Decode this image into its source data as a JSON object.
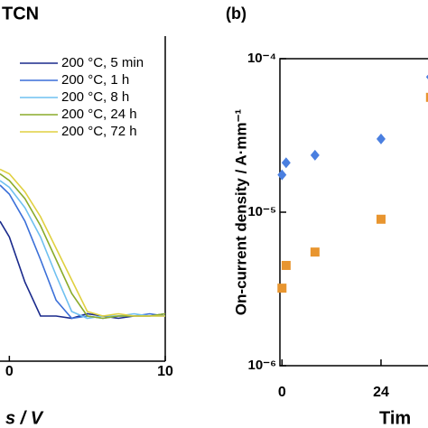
{
  "chart_data": [
    {
      "type": "line",
      "title": "TCN",
      "xlabel": "s / V",
      "x": [
        -0.6,
        0,
        1,
        2,
        3,
        4,
        5,
        6,
        7,
        8,
        9,
        10
      ],
      "xlim": [
        -0.6,
        10
      ],
      "xticks": [
        0,
        10
      ],
      "ylim": [
        0,
        1
      ],
      "series": [
        {
          "name": "200 °C, 5 min",
          "color": "#1a2a8c",
          "values": [
            0.62,
            0.55,
            0.35,
            0.2,
            0.2,
            0.19,
            0.21,
            0.2,
            0.19,
            0.2,
            0.2,
            0.21
          ]
        },
        {
          "name": "200 °C, 1 h",
          "color": "#3a6fd8",
          "values": [
            0.78,
            0.74,
            0.62,
            0.45,
            0.27,
            0.19,
            0.2,
            0.19,
            0.2,
            0.2,
            0.21,
            0.2
          ]
        },
        {
          "name": "200 °C, 8 h",
          "color": "#6fc0f0",
          "values": [
            0.8,
            0.77,
            0.68,
            0.55,
            0.38,
            0.22,
            0.19,
            0.2,
            0.2,
            0.21,
            0.2,
            0.2
          ]
        },
        {
          "name": "200 °C, 24 h",
          "color": "#8aab2a",
          "values": [
            0.83,
            0.8,
            0.72,
            0.6,
            0.45,
            0.3,
            0.2,
            0.19,
            0.2,
            0.2,
            0.2,
            0.21
          ]
        },
        {
          "name": "200 °C, 72 h",
          "color": "#e0d040",
          "values": [
            0.85,
            0.83,
            0.75,
            0.64,
            0.5,
            0.36,
            0.22,
            0.2,
            0.21,
            0.2,
            0.2,
            0.2
          ]
        }
      ]
    },
    {
      "type": "scatter",
      "title": "(b)",
      "xlabel": "Tim",
      "ylabel": "On-current density / A·mm⁻¹",
      "log_y": true,
      "xlim": [
        -0.5,
        36.7
      ],
      "xticks": [
        0,
        24
      ],
      "ylim": [
        1e-06,
        0.0001
      ],
      "yticks": [
        {
          "value": 1e-06,
          "label": "10⁻⁶"
        },
        {
          "value": 1e-05,
          "label": "10⁻⁵"
        },
        {
          "value": 0.0001,
          "label": "10⁻⁴"
        }
      ],
      "series": [
        {
          "color": "#4a7fe0",
          "marker": "diamond",
          "x": [
            0,
            1,
            8,
            24,
            36
          ],
          "values": [
            1.75e-05,
            2.1e-05,
            2.35e-05,
            3e-05,
            7.6e-05
          ]
        },
        {
          "color": "#e8952f",
          "marker": "square",
          "x": [
            0,
            1,
            8,
            24,
            36
          ],
          "values": [
            3.2e-06,
            4.5e-06,
            5.5e-06,
            9e-06,
            5.6e-05
          ]
        }
      ]
    }
  ]
}
